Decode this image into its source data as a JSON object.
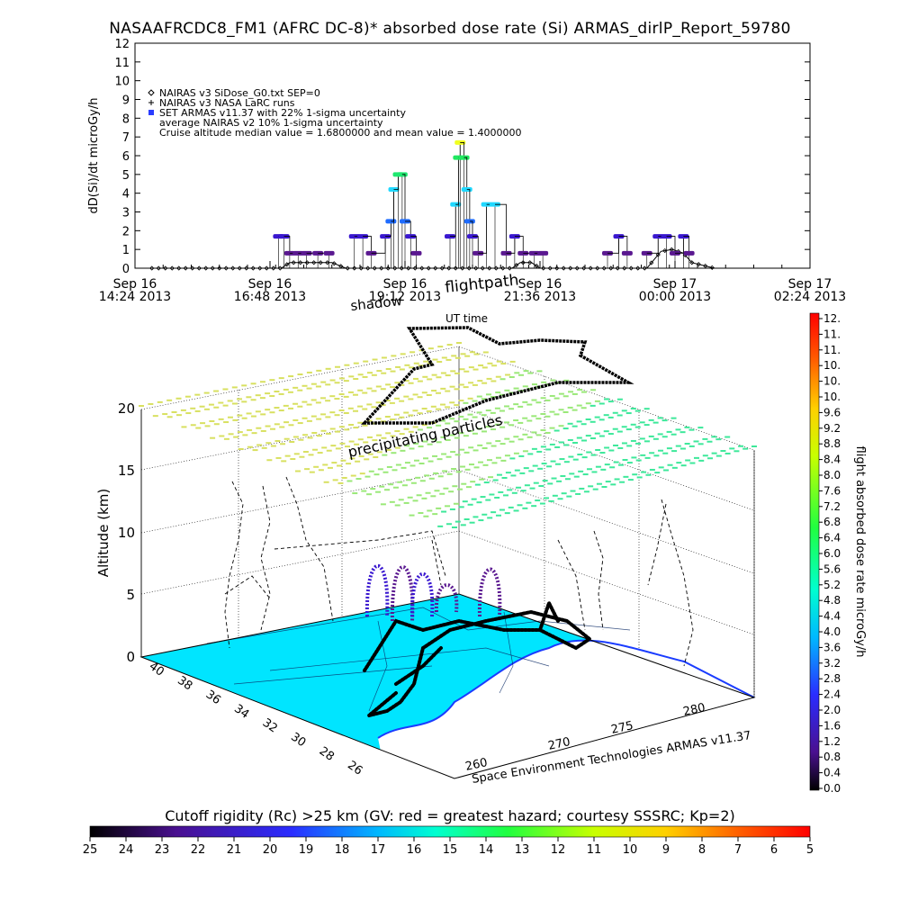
{
  "title": "NASAAFRCDC8_FM1 (AFRC DC-8)* absorbed dose rate (Si) ARMAS_dirlP_Report_59780",
  "chart_data": [
    {
      "type": "scatter",
      "ylabel": "dD(Si)/dt microGy/h",
      "xlabel": "UT time",
      "ylim": [
        0,
        12
      ],
      "y_ticks": [
        "0",
        "1",
        "2",
        "3",
        "4",
        "5",
        "6",
        "7",
        "8",
        "9",
        "10",
        "11",
        "12"
      ],
      "x_ticks": [
        {
          "line1": "Sep 16",
          "line2": "14:24 2013",
          "t": 0
        },
        {
          "line1": "Sep 16",
          "line2": "16:48 2013",
          "t": 2.4
        },
        {
          "line1": "Sep 16",
          "line2": "19:12 2013",
          "t": 4.8
        },
        {
          "line1": "Sep 16",
          "line2": "21:36 2013",
          "t": 7.2
        },
        {
          "line1": "Sep 17",
          "line2": "00:00 2013",
          "t": 9.6
        },
        {
          "line1": "Sep 17",
          "line2": "02:24 2013",
          "t": 12.0
        }
      ],
      "xlim": [
        0,
        12
      ],
      "legend": [
        "NAIRAS v3 SiDose_G0.txt SEP=0",
        "NAIRAS v3 NASA LaRC runs",
        "SET ARMAS v11.37 with 22% 1-sigma uncertainty",
        "average NAIRAS v2 10% 1-sigma uncertainty",
        "Cruise altitude median value = 1.6800000 and mean value = 1.4000000"
      ],
      "legend_position": "top-left",
      "armas_points": [
        {
          "t": 2.55,
          "v": 1.7
        },
        {
          "t": 2.65,
          "v": 1.7
        },
        {
          "t": 2.75,
          "v": 0.8
        },
        {
          "t": 2.9,
          "v": 0.8
        },
        {
          "t": 3.05,
          "v": 0.8
        },
        {
          "t": 3.25,
          "v": 0.8
        },
        {
          "t": 3.45,
          "v": 0.8
        },
        {
          "t": 3.9,
          "v": 1.7
        },
        {
          "t": 4.05,
          "v": 1.7
        },
        {
          "t": 4.2,
          "v": 0.8
        },
        {
          "t": 4.45,
          "v": 1.7
        },
        {
          "t": 4.55,
          "v": 2.5
        },
        {
          "t": 4.6,
          "v": 4.2
        },
        {
          "t": 4.68,
          "v": 5.0
        },
        {
          "t": 4.75,
          "v": 5.0
        },
        {
          "t": 4.8,
          "v": 2.5
        },
        {
          "t": 4.9,
          "v": 1.7
        },
        {
          "t": 5.0,
          "v": 0.8
        },
        {
          "t": 5.6,
          "v": 1.7
        },
        {
          "t": 5.7,
          "v": 3.4
        },
        {
          "t": 5.75,
          "v": 5.9
        },
        {
          "t": 5.78,
          "v": 6.7
        },
        {
          "t": 5.85,
          "v": 5.9
        },
        {
          "t": 5.9,
          "v": 4.2
        },
        {
          "t": 5.95,
          "v": 2.5
        },
        {
          "t": 6.0,
          "v": 1.7
        },
        {
          "t": 6.1,
          "v": 0.8
        },
        {
          "t": 6.25,
          "v": 3.4
        },
        {
          "t": 6.4,
          "v": 3.4
        },
        {
          "t": 6.6,
          "v": 0.8
        },
        {
          "t": 6.75,
          "v": 1.7
        },
        {
          "t": 6.9,
          "v": 0.8
        },
        {
          "t": 7.1,
          "v": 0.8
        },
        {
          "t": 7.25,
          "v": 0.8
        },
        {
          "t": 8.4,
          "v": 0.8
        },
        {
          "t": 8.6,
          "v": 1.7
        },
        {
          "t": 8.75,
          "v": 0.8
        },
        {
          "t": 9.1,
          "v": 0.8
        },
        {
          "t": 9.3,
          "v": 1.7
        },
        {
          "t": 9.45,
          "v": 1.7
        },
        {
          "t": 9.6,
          "v": 0.8
        },
        {
          "t": 9.75,
          "v": 1.7
        },
        {
          "t": 9.85,
          "v": 0.8
        }
      ],
      "nairas_series": [
        [
          0.0,
          0.0
        ],
        [
          2.6,
          0.0
        ],
        [
          2.75,
          0.3
        ],
        [
          3.5,
          0.3
        ],
        [
          3.75,
          0.0
        ],
        [
          4.3,
          0.0
        ],
        [
          4.4,
          0.0
        ],
        [
          5.5,
          0.0
        ],
        [
          6.7,
          0.0
        ],
        [
          6.85,
          0.3
        ],
        [
          7.05,
          0.3
        ],
        [
          7.2,
          0.0
        ],
        [
          9.1,
          0.0
        ],
        [
          9.35,
          0.9
        ],
        [
          9.55,
          1.0
        ],
        [
          9.75,
          0.8
        ],
        [
          9.9,
          0.3
        ],
        [
          10.3,
          0.0
        ]
      ]
    },
    {
      "type": "scatter",
      "zlabel": "Altitude (km)",
      "z_ticks": [
        "0",
        "5",
        "10",
        "15",
        "20"
      ],
      "lat_ticks": [
        "40",
        "38",
        "36",
        "34",
        "32",
        "30",
        "28",
        "26"
      ],
      "lon_ticks": [
        "260",
        "270",
        "275",
        "280"
      ],
      "annotations": [
        "flightpath",
        "shadow",
        "precipitating particles"
      ],
      "credit": "Space Environment Technologies ARMAS v11.37"
    },
    {
      "type": "heatmap",
      "label": "flight absorbed dose rate microGy/h",
      "ticks": [
        "12.",
        "11.",
        "11.",
        "10.",
        "10.",
        "10.",
        "9.6",
        "9.2",
        "8.8",
        "8.4",
        "8.0",
        "7.6",
        "7.2",
        "6.8",
        "6.4",
        "6.0",
        "5.6",
        "5.2",
        "4.8",
        "4.4",
        "4.0",
        "3.6",
        "3.2",
        "2.8",
        "2.4",
        "2.0",
        "1.6",
        "1.2",
        "0.8",
        "0.4",
        "0.0"
      ]
    },
    {
      "type": "heatmap",
      "label": "Cutoff rigidity (Rc) >25 km (GV: red = greatest hazard; courtesy SSSRC; Kp=2)",
      "ticks": [
        "25",
        "24",
        "23",
        "22",
        "21",
        "20",
        "19",
        "18",
        "17",
        "16",
        "15",
        "14",
        "13",
        "12",
        "11",
        "10",
        "9",
        "8",
        "7",
        "6",
        "5"
      ]
    }
  ],
  "colors": {
    "map_fill": "#00e5ff",
    "map_land_white": "#ffffff",
    "grid_top_far": "#e8e070",
    "grid_top_near": "#3de890",
    "flight_path": "#000000",
    "dose_low": "#5a2cb0",
    "dose_high": "#c8f000"
  }
}
